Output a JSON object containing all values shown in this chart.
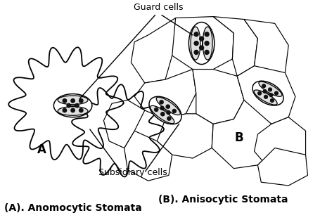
{
  "label_guard_cells": "Guard cells",
  "label_subsidiary_cells": "Subsidiary cells",
  "label_A": "A",
  "label_B": "B",
  "caption_A": "(A). Anomocytic Stomata",
  "caption_B": "(B). Anisocytic Stomata",
  "bg_color": "#ffffff",
  "line_color": "#000000",
  "dot_color": "#111111",
  "figsize": [
    4.56,
    3.13
  ],
  "dpi": 100
}
